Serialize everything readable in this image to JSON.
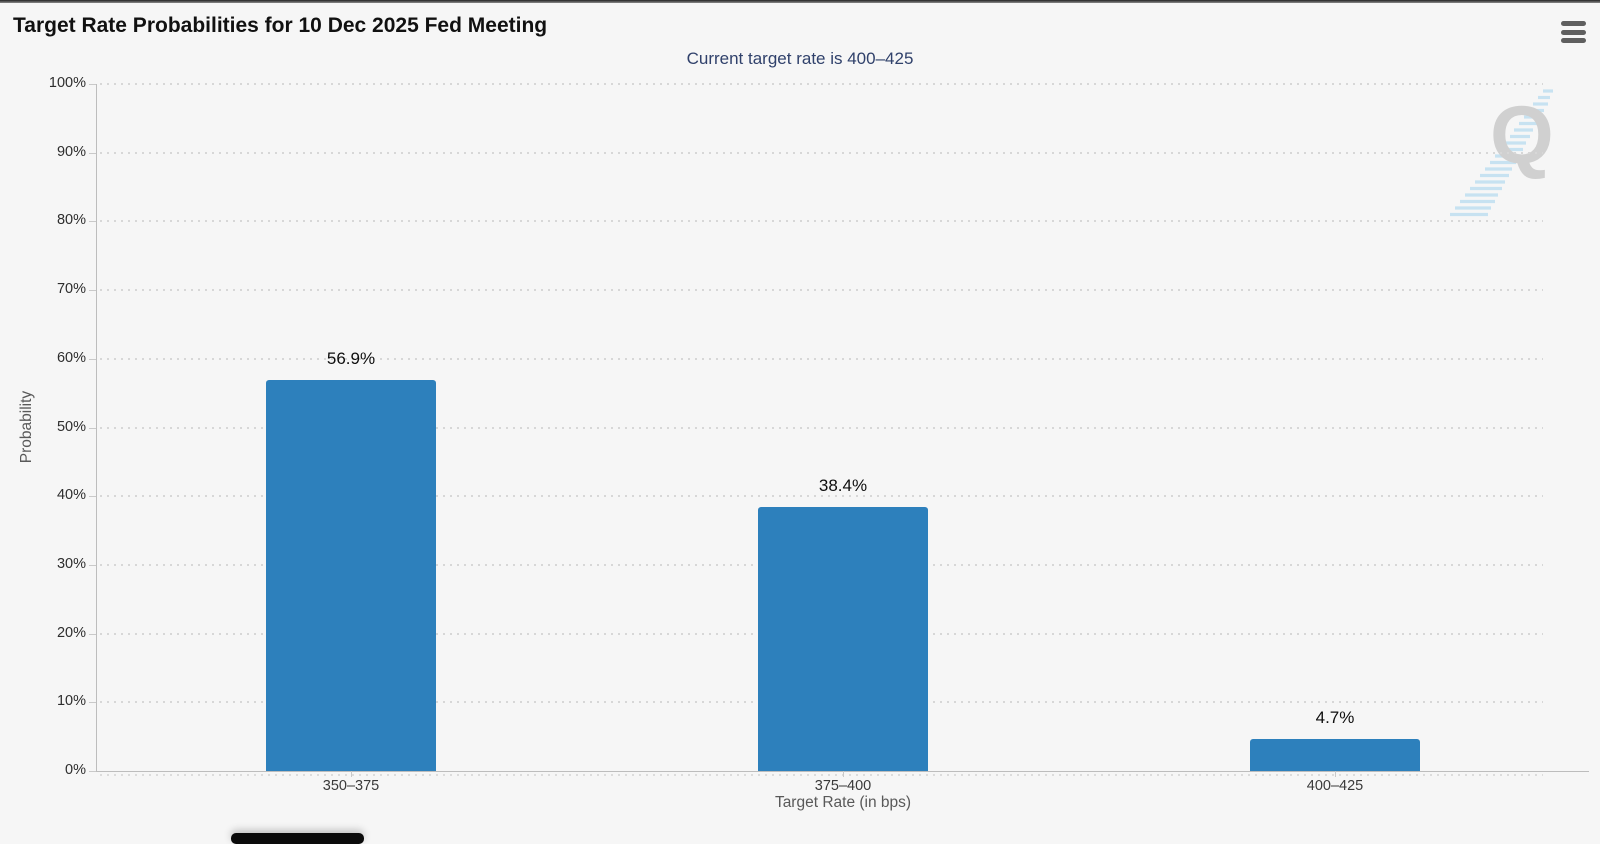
{
  "header": {
    "title": "Target Rate Probabilities for 10 Dec 2025 Fed Meeting"
  },
  "subtitle": {
    "text": "Current target rate is 400–425"
  },
  "watermark": {
    "letter": "Q"
  },
  "chart_data": {
    "type": "bar",
    "title": "Target Rate Probabilities for 10 Dec 2025 Fed Meeting",
    "subtitle": "Current target rate is 400–425",
    "categories": [
      "350–375",
      "375–400",
      "400–425"
    ],
    "values": [
      56.9,
      38.4,
      4.7
    ],
    "value_labels": [
      "56.9%",
      "38.4%",
      "4.7%"
    ],
    "xlabel": "Target Rate (in bps)",
    "ylabel": "Probability",
    "ylim": [
      0,
      100
    ],
    "y_ticks": [
      "0%",
      "10%",
      "20%",
      "30%",
      "40%",
      "50%",
      "60%",
      "70%",
      "80%",
      "90%",
      "100%"
    ],
    "grid": "dotted-horizontal",
    "legend": "none",
    "bar_color": "#2d80bc"
  },
  "colors": {
    "background": "#f6f6f6",
    "bar": "#2d80bc",
    "subtitle_text": "#30416b",
    "title_text": "#111111",
    "gridline": "#d7d7d7",
    "axis_line": "#bdbdbd",
    "axis_title_text": "#595959",
    "menu_icon": "#5f5f5f",
    "watermark_q": "#d0d0d0",
    "watermark_swoosh": "#a9d5ef"
  }
}
